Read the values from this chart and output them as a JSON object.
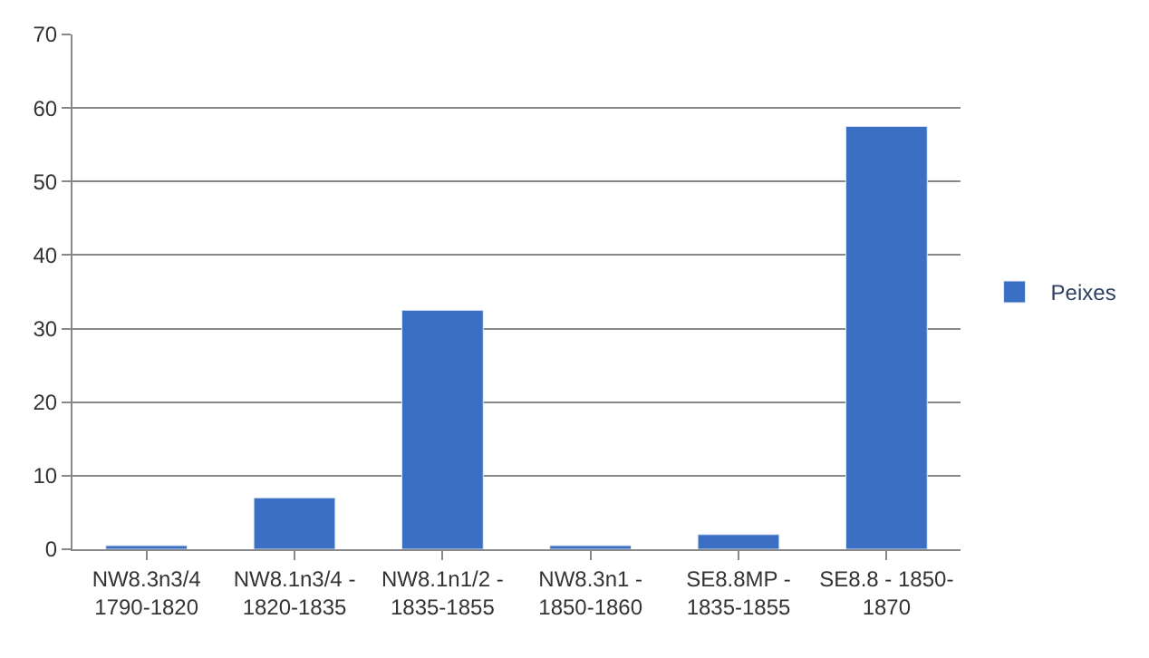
{
  "chart_data": {
    "type": "bar",
    "categories": [
      "NW8.3n3/4\n1790-1820",
      "NW8.1n3/4 -\n1820-1835",
      "NW8.1n1/2 -\n1835-1855",
      "NW8.3n1 -\n1850-1860",
      "SE8.8MP -\n1835-1855",
      "SE8.8 - 1850-\n1870"
    ],
    "series": [
      {
        "name": "Peixes",
        "color": "#3a6fc4",
        "values": [
          0.5,
          7,
          32.5,
          0.5,
          2,
          57.5
        ]
      }
    ],
    "ylim": [
      0,
      70
    ],
    "yticks": [
      0,
      10,
      20,
      30,
      40,
      50,
      60,
      70
    ],
    "grid": "y",
    "legend": "right"
  }
}
